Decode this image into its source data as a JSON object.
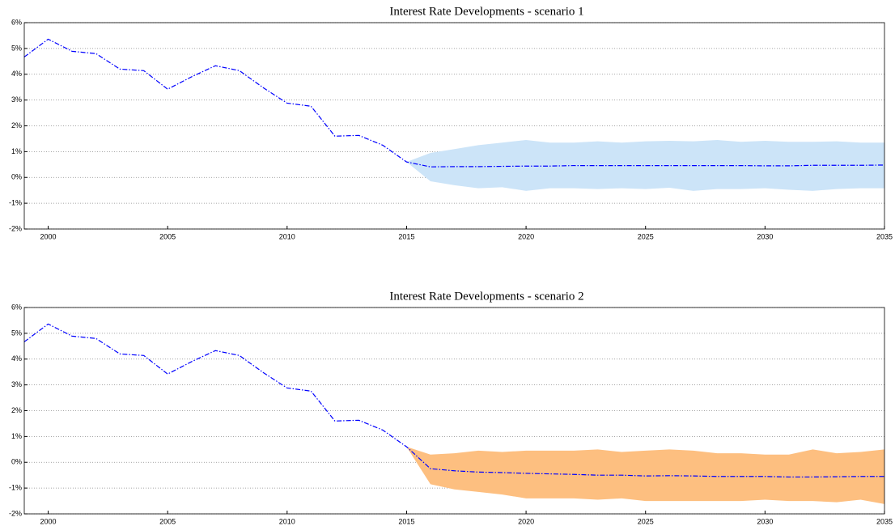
{
  "chart_data": [
    {
      "type": "line",
      "title": "Interest Rate Developments - scenario 1",
      "x": [
        1999,
        2000,
        2001,
        2002,
        2003,
        2004,
        2005,
        2006,
        2007,
        2008,
        2009,
        2010,
        2011,
        2012,
        2013,
        2014,
        2015,
        2016,
        2017,
        2018,
        2019,
        2020,
        2021,
        2022,
        2023,
        2024,
        2025,
        2026,
        2027,
        2028,
        2029,
        2030,
        2031,
        2032,
        2033,
        2034,
        2035
      ],
      "series": [
        {
          "color": "#0000ff",
          "values": [
            4.67,
            5.36,
            4.89,
            4.8,
            4.2,
            4.14,
            3.42,
            3.9,
            4.33,
            4.14,
            3.48,
            2.88,
            2.76,
            1.6,
            1.63,
            1.25,
            0.6,
            0.41,
            0.42,
            0.42,
            0.43,
            0.44,
            0.44,
            0.46,
            0.46,
            0.46,
            0.46,
            0.46,
            0.46,
            0.46,
            0.46,
            0.45,
            0.45,
            0.47,
            0.47,
            0.47,
            0.48
          ]
        }
      ],
      "band": {
        "color": "#cce4f8",
        "upper": [
          null,
          null,
          null,
          null,
          null,
          null,
          null,
          null,
          null,
          null,
          null,
          null,
          null,
          null,
          null,
          null,
          0.6,
          0.95,
          1.1,
          1.25,
          1.35,
          1.45,
          1.35,
          1.35,
          1.4,
          1.35,
          1.4,
          1.42,
          1.4,
          1.45,
          1.38,
          1.42,
          1.38,
          1.38,
          1.4,
          1.35,
          1.35
        ],
        "lower": [
          null,
          null,
          null,
          null,
          null,
          null,
          null,
          null,
          null,
          null,
          null,
          null,
          null,
          null,
          null,
          null,
          0.6,
          -0.15,
          -0.3,
          -0.42,
          -0.38,
          -0.52,
          -0.42,
          -0.42,
          -0.45,
          -0.42,
          -0.45,
          -0.4,
          -0.52,
          -0.45,
          -0.45,
          -0.42,
          -0.48,
          -0.52,
          -0.45,
          -0.42,
          -0.42
        ]
      },
      "xlim": [
        1999,
        2035
      ],
      "xticks": [
        2000,
        2005,
        2010,
        2015,
        2020,
        2025,
        2030,
        2035
      ],
      "ylim": [
        -2,
        6
      ],
      "yticks": [
        {
          "value": -2,
          "label": "-2%"
        },
        {
          "value": -1,
          "label": "-1%"
        },
        {
          "value": 0,
          "label": "0%"
        },
        {
          "value": 1,
          "label": "1%"
        },
        {
          "value": 2,
          "label": "2%"
        },
        {
          "value": 3,
          "label": "3%"
        },
        {
          "value": 4,
          "label": "4%"
        },
        {
          "value": 5,
          "label": "5%"
        },
        {
          "value": 6,
          "label": "6%"
        }
      ],
      "grid": true
    },
    {
      "type": "line",
      "title": "Interest Rate Developments - scenario 2",
      "x": [
        1999,
        2000,
        2001,
        2002,
        2003,
        2004,
        2005,
        2006,
        2007,
        2008,
        2009,
        2010,
        2011,
        2012,
        2013,
        2014,
        2015,
        2016,
        2017,
        2018,
        2019,
        2020,
        2021,
        2022,
        2023,
        2024,
        2025,
        2026,
        2027,
        2028,
        2029,
        2030,
        2031,
        2032,
        2033,
        2034,
        2035
      ],
      "series": [
        {
          "color": "#0000ff",
          "values": [
            4.67,
            5.36,
            4.89,
            4.8,
            4.2,
            4.14,
            3.42,
            3.9,
            4.33,
            4.14,
            3.48,
            2.88,
            2.76,
            1.6,
            1.63,
            1.25,
            0.6,
            -0.25,
            -0.33,
            -0.38,
            -0.4,
            -0.43,
            -0.45,
            -0.47,
            -0.5,
            -0.5,
            -0.53,
            -0.52,
            -0.53,
            -0.55,
            -0.55,
            -0.55,
            -0.57,
            -0.57,
            -0.56,
            -0.55,
            -0.55
          ]
        }
      ],
      "band": {
        "color": "#fdbf80",
        "upper": [
          null,
          null,
          null,
          null,
          null,
          null,
          null,
          null,
          null,
          null,
          null,
          null,
          null,
          null,
          null,
          null,
          0.6,
          0.3,
          0.35,
          0.45,
          0.4,
          0.45,
          0.45,
          0.45,
          0.5,
          0.4,
          0.45,
          0.5,
          0.45,
          0.35,
          0.35,
          0.3,
          0.3,
          0.5,
          0.35,
          0.4,
          0.5
        ],
        "lower": [
          null,
          null,
          null,
          null,
          null,
          null,
          null,
          null,
          null,
          null,
          null,
          null,
          null,
          null,
          null,
          null,
          0.6,
          -0.85,
          -1.05,
          -1.15,
          -1.25,
          -1.4,
          -1.4,
          -1.4,
          -1.45,
          -1.4,
          -1.5,
          -1.5,
          -1.5,
          -1.5,
          -1.5,
          -1.45,
          -1.5,
          -1.5,
          -1.55,
          -1.45,
          -1.62
        ]
      },
      "xlim": [
        1999,
        2035
      ],
      "xticks": [
        2000,
        2005,
        2010,
        2015,
        2020,
        2025,
        2030,
        2035
      ],
      "ylim": [
        -2,
        6
      ],
      "yticks": [
        {
          "value": -2,
          "label": "-2%"
        },
        {
          "value": -1,
          "label": "-1%"
        },
        {
          "value": 0,
          "label": "0%"
        },
        {
          "value": 1,
          "label": "1%"
        },
        {
          "value": 2,
          "label": "2%"
        },
        {
          "value": 3,
          "label": "3%"
        },
        {
          "value": 4,
          "label": "4%"
        },
        {
          "value": 5,
          "label": "5%"
        },
        {
          "value": 6,
          "label": "6%"
        }
      ],
      "grid": true
    }
  ]
}
